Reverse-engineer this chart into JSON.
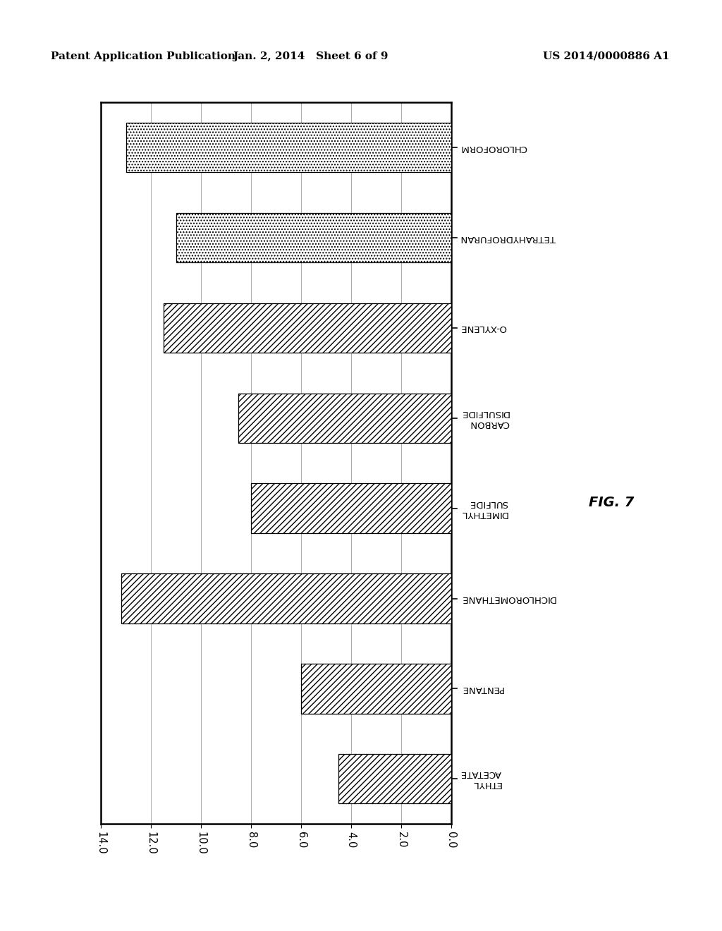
{
  "categories": [
    "ETHYL\nACETATE",
    "PENTANE",
    "DICHLOROMETHANE",
    "DIMETHYL\nSULFIDE",
    "CARBON\nDISULFIDE",
    "O-XYLENE",
    "TETRAHYDROFURAN",
    "CHLOROFORM"
  ],
  "values": [
    4.5,
    6.0,
    13.2,
    8.0,
    8.5,
    11.5,
    11.0,
    13.0
  ],
  "hatch_patterns": [
    "////",
    "////",
    "////",
    "////",
    "////",
    "////",
    "....",
    "...."
  ],
  "xlim_max": 14.0,
  "xticks": [
    0.0,
    2.0,
    4.0,
    6.0,
    8.0,
    10.0,
    12.0,
    14.0
  ],
  "bar_height": 0.55,
  "fig_label": "FIG. 7",
  "header_left": "Patent Application Publication",
  "header_center": "Jan. 2, 2014   Sheet 6 of 9",
  "header_right": "US 2014/0000886 A1",
  "background_color": "#ffffff",
  "grid_color": "#aaaaaa",
  "bar_edgecolor": "#000000",
  "spine_lw": 1.8
}
